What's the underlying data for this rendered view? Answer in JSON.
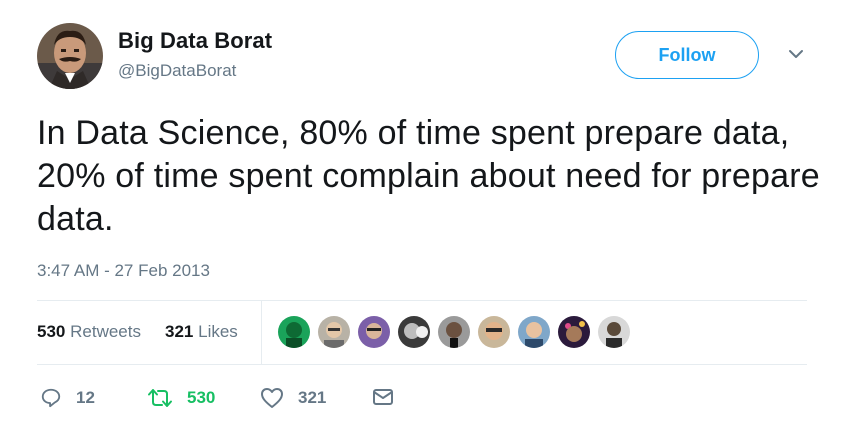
{
  "author": {
    "name": "Big Data Borat",
    "handle": "@BigDataBorat"
  },
  "follow_label": "Follow",
  "tweet_text": "In Data Science, 80% of time spent prepare data, 20% of time spent complain about need for prepare data.",
  "timestamp": "3:47 AM - 27 Feb 2013",
  "stats": {
    "retweets_count": "530",
    "retweets_label": "Retweets",
    "likes_count": "321",
    "likes_label": "Likes"
  },
  "actions": {
    "reply_count": "12",
    "retweet_count": "530",
    "like_count": "321"
  },
  "colors": {
    "accent": "#1da1f2",
    "retweet_green": "#17bf63",
    "secondary_text": "#657786",
    "divider": "#e6ecf0"
  },
  "icons": [
    "reply-icon",
    "retweet-icon",
    "heart-icon",
    "envelope-icon",
    "chevron-down-icon"
  ]
}
